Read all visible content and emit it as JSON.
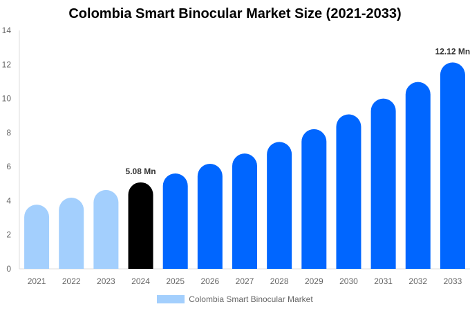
{
  "chart_data": {
    "type": "bar",
    "title": "Colombia Smart Binocular Market Size (2021-2033)",
    "categories": [
      "2021",
      "2022",
      "2023",
      "2024",
      "2025",
      "2026",
      "2027",
      "2028",
      "2029",
      "2030",
      "2031",
      "2032",
      "2033"
    ],
    "series": [
      {
        "name": "Colombia Smart Binocular Market",
        "values": [
          3.77,
          4.18,
          4.63,
          5.08,
          5.6,
          6.17,
          6.77,
          7.45,
          8.2,
          9.07,
          10.0,
          10.97,
          12.12
        ]
      }
    ],
    "data_labels": {
      "3": "5.08 Mn",
      "12": "12.12 Mn"
    },
    "ylim": [
      0,
      14
    ],
    "yticks": [
      0,
      2,
      4,
      6,
      8,
      10,
      12,
      14
    ],
    "grid": false,
    "legend": "bottom",
    "colors": {
      "historical": "#a3cffd",
      "base_year": "#000000",
      "forecast": "#0066ff"
    }
  }
}
